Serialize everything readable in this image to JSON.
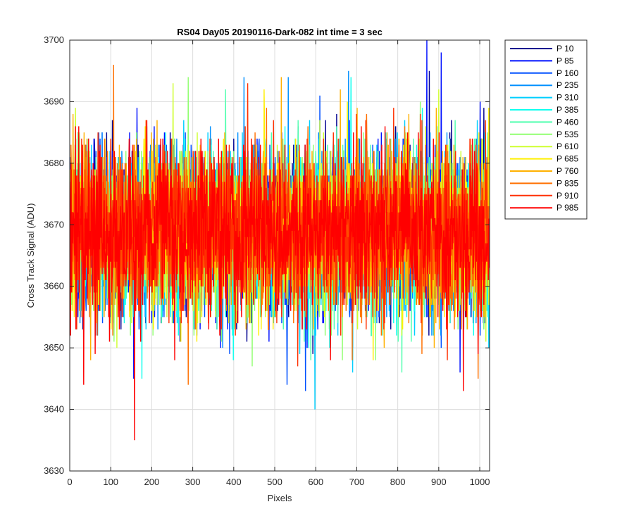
{
  "chart_data": {
    "type": "line",
    "title": "RS04 Day05 20190116-Dark-082 int time = 3 sec",
    "xlabel": "Pixels",
    "ylabel": "Cross Track Signal (ADU)",
    "xlim": [
      0,
      1024
    ],
    "ylim": [
      3630,
      3700
    ],
    "xticks": [
      0,
      100,
      200,
      300,
      400,
      500,
      600,
      700,
      800,
      900,
      1000
    ],
    "yticks": [
      3630,
      3640,
      3650,
      3660,
      3670,
      3680,
      3690,
      3700
    ],
    "grid": true,
    "legend_position": "outside-top-right",
    "series": [
      {
        "name": "P 10",
        "color": "#00008F",
        "mean": 3669,
        "noise": 6.5,
        "seed": 11,
        "spikes": [
          [
            100,
            3655
          ],
          [
            400,
            3684
          ],
          [
            877,
            3695
          ]
        ]
      },
      {
        "name": "P 85",
        "color": "#0010FF",
        "mean": 3669,
        "noise": 6.5,
        "seed": 23,
        "spikes": [
          [
            156,
            3645
          ],
          [
            871,
            3700
          ],
          [
            906,
            3698
          ],
          [
            952,
            3646
          ]
        ]
      },
      {
        "name": "P 160",
        "color": "#0050FF",
        "mean": 3669,
        "noise": 6.5,
        "seed": 37,
        "spikes": [
          [
            530,
            3644
          ],
          [
            575,
            3643
          ],
          [
            610,
            3691
          ]
        ]
      },
      {
        "name": "P 235",
        "color": "#0090FF",
        "mean": 3669,
        "noise": 6.5,
        "seed": 41,
        "spikes": [
          [
            425,
            3694
          ],
          [
            533,
            3694
          ],
          [
            680,
            3695
          ]
        ]
      },
      {
        "name": "P 310",
        "color": "#00CFFF",
        "mean": 3669,
        "noise": 6.5,
        "seed": 53,
        "spikes": [
          [
            598,
            3640
          ],
          [
            690,
            3646
          ]
        ]
      },
      {
        "name": "P 385",
        "color": "#10FFEF",
        "mean": 3669,
        "noise": 6.5,
        "seed": 61,
        "spikes": [
          [
            686,
            3694
          ],
          [
            176,
            3645
          ]
        ]
      },
      {
        "name": "P 460",
        "color": "#50FFAF",
        "mean": 3669,
        "noise": 6.5,
        "seed": 71,
        "spikes": [
          [
            810,
            3646
          ],
          [
            380,
            3692
          ]
        ]
      },
      {
        "name": "P 535",
        "color": "#90FF70",
        "mean": 3669,
        "noise": 6.5,
        "seed": 83,
        "spikes": [
          [
            289,
            3694
          ],
          [
            445,
            3647
          ]
        ]
      },
      {
        "name": "P 610",
        "color": "#CFFF30",
        "mean": 3669,
        "noise": 6.5,
        "seed": 97,
        "spikes": [
          [
            252,
            3693
          ],
          [
            900,
            3692
          ]
        ]
      },
      {
        "name": "P 685",
        "color": "#FFEF00",
        "mean": 3669,
        "noise": 6.5,
        "seed": 101,
        "spikes": [
          [
            474,
            3692
          ],
          [
            740,
            3648
          ]
        ]
      },
      {
        "name": "P 760",
        "color": "#FFB000",
        "mean": 3669,
        "noise": 6.5,
        "seed": 113,
        "spikes": [
          [
            516,
            3694
          ],
          [
            660,
            3692
          ]
        ]
      },
      {
        "name": "P 835",
        "color": "#FF7000",
        "mean": 3669,
        "noise": 6.5,
        "seed": 127,
        "spikes": [
          [
            107,
            3696
          ],
          [
            289,
            3644
          ],
          [
            996,
            3645
          ]
        ]
      },
      {
        "name": "P 910",
        "color": "#FF3000",
        "mean": 3669,
        "noise": 6.5,
        "seed": 131,
        "spikes": [
          [
            434,
            3693
          ],
          [
            790,
            3689
          ],
          [
            556,
            3647
          ]
        ]
      },
      {
        "name": "P 985",
        "color": "#FF0000",
        "mean": 3669,
        "noise": 6.5,
        "seed": 139,
        "spikes": [
          [
            158,
            3635
          ],
          [
            34,
            3644
          ],
          [
            960,
            3643
          ]
        ]
      }
    ]
  }
}
